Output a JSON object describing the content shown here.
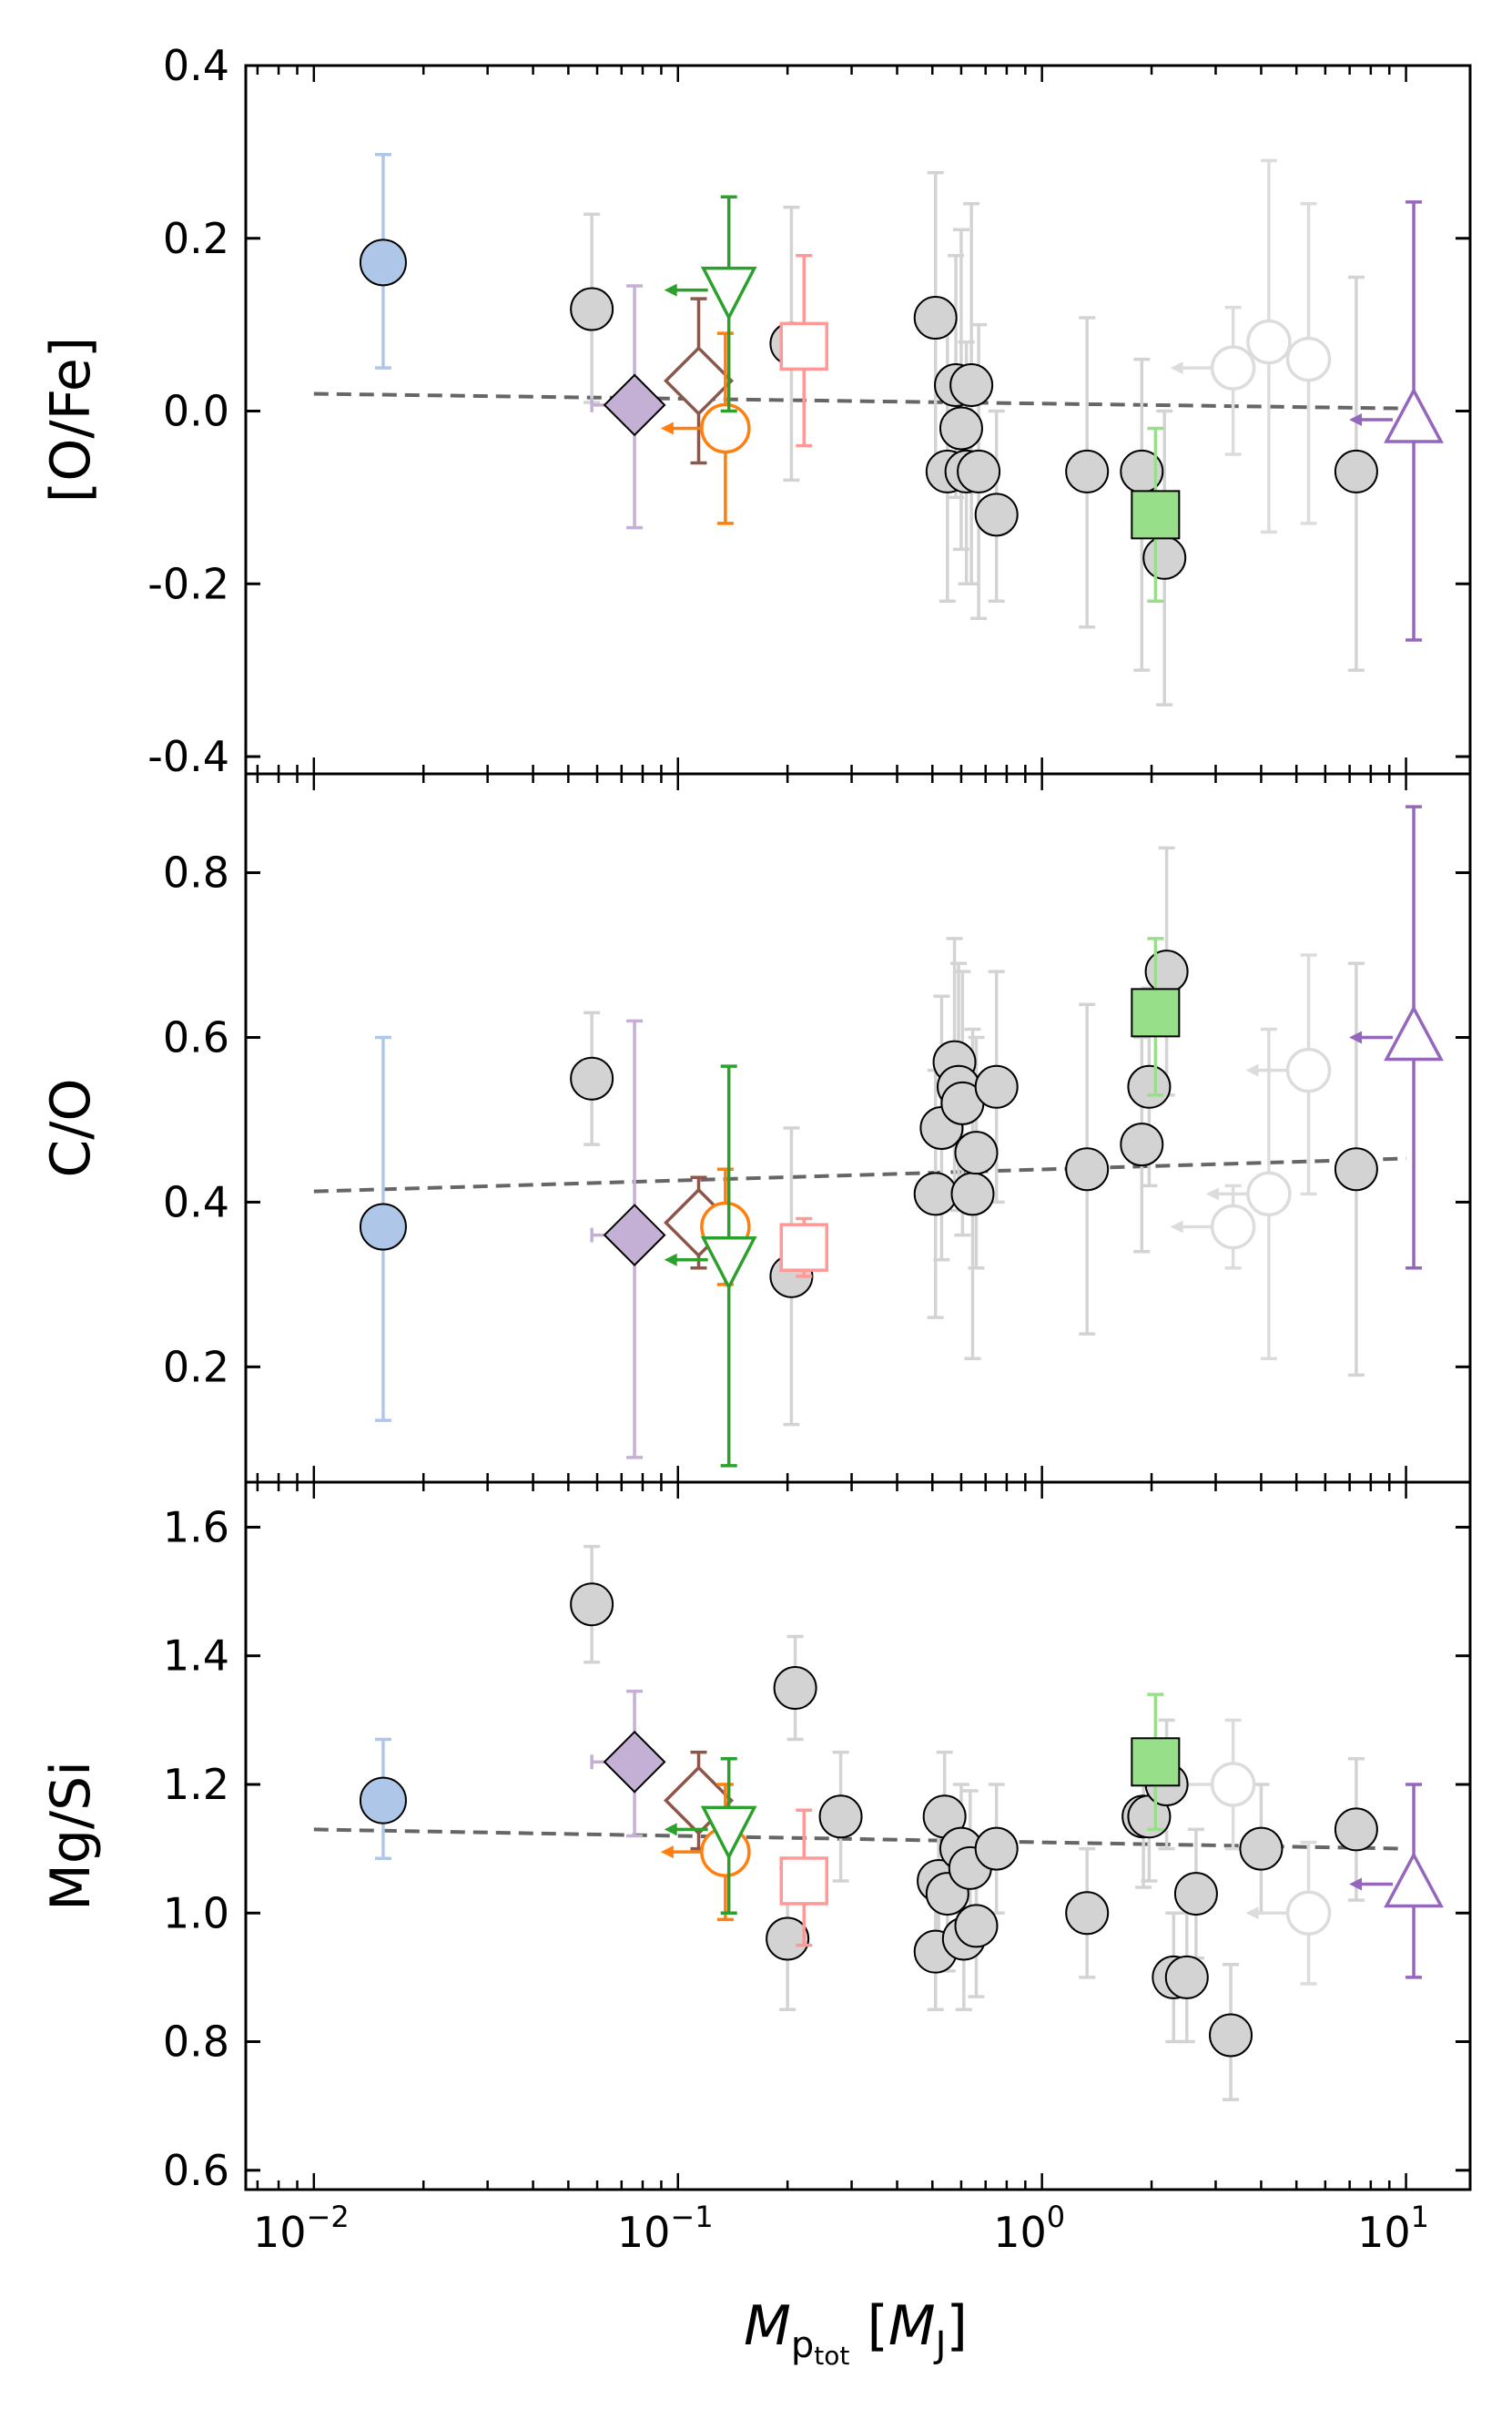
{
  "chart_data": {
    "type": "scatter",
    "x_axis": {
      "label_main": "M",
      "label_sub": "p",
      "label_subsub": "tot",
      "label_unit_open": "[",
      "label_unit_main": "M",
      "label_unit_sub": "J",
      "label_unit_close": "]",
      "scale": "log",
      "range": [
        0.0065,
        15
      ],
      "ticks": [
        0.01,
        0.1,
        1,
        10
      ],
      "tick_labels": [
        {
          "base": "10",
          "exp": "−2"
        },
        {
          "base": "10",
          "exp": "−1"
        },
        {
          "base": "10",
          "exp": "0"
        },
        {
          "base": "10",
          "exp": "1"
        }
      ]
    },
    "panels": [
      {
        "id": "ofe",
        "ylabel": "[O/Fe]",
        "ylim": [
          -0.42,
          0.4
        ],
        "ticks": [
          0.4,
          0.2,
          0.0,
          -0.2,
          -0.4
        ],
        "tick_labels": [
          "0.4",
          "0.2",
          "0.0",
          "-0.2",
          "-0.4"
        ],
        "trend": {
          "x": [
            0.01,
            10
          ],
          "y": [
            0.02,
            0.003
          ]
        },
        "grey_points": [
          {
            "x": 0.058,
            "y": 0.118,
            "lo": 0.01,
            "hi": 0.228
          },
          {
            "x": 0.205,
            "y": 0.078,
            "lo": -0.08,
            "hi": 0.236
          },
          {
            "x": 0.51,
            "y": 0.108,
            "lo": -0.06,
            "hi": 0.276
          },
          {
            "x": 0.55,
            "y": -0.07,
            "lo": -0.22,
            "hi": 0.1
          },
          {
            "x": 0.58,
            "y": 0.03,
            "lo": -0.1,
            "hi": 0.18
          },
          {
            "x": 0.6,
            "y": -0.02,
            "lo": -0.16,
            "hi": 0.21
          },
          {
            "x": 0.62,
            "y": -0.07,
            "lo": -0.2,
            "hi": 0.08
          },
          {
            "x": 0.64,
            "y": 0.03,
            "lo": -0.2,
            "hi": 0.24
          },
          {
            "x": 0.67,
            "y": -0.07,
            "lo": -0.24,
            "hi": 0.1
          },
          {
            "x": 0.75,
            "y": -0.12,
            "lo": -0.22,
            "hi": 0.0
          },
          {
            "x": 1.33,
            "y": -0.07,
            "lo": -0.25,
            "hi": 0.108
          },
          {
            "x": 1.88,
            "y": -0.07,
            "lo": -0.3,
            "hi": 0.06
          },
          {
            "x": 2.17,
            "y": -0.17,
            "lo": -0.34,
            "hi": 0.0
          },
          {
            "x": 7.3,
            "y": -0.07,
            "lo": -0.3,
            "hi": 0.155
          }
        ],
        "open_grey_points": [
          {
            "x": 3.35,
            "y": 0.05,
            "lo": -0.05,
            "hi": 0.12,
            "upper_limit": true
          },
          {
            "x": 4.2,
            "y": 0.08,
            "lo": -0.14,
            "hi": 0.29
          },
          {
            "x": 5.4,
            "y": 0.06,
            "lo": -0.13,
            "hi": 0.24
          }
        ],
        "special_points": [
          {
            "name": "blue-circle",
            "x": 0.0155,
            "y": 0.172,
            "lo": 0.05,
            "hi": 0.297
          },
          {
            "name": "purple-diamond",
            "x": 0.076,
            "y": 0.007,
            "lo": -0.135,
            "hi": 0.145,
            "xlim_arrow": false,
            "xerr": [
              0.058,
              0.085
            ]
          },
          {
            "name": "brown-diamond",
            "x": 0.114,
            "y": 0.035,
            "lo": -0.06,
            "hi": 0.13
          },
          {
            "name": "orange-circle",
            "x": 0.135,
            "y": -0.02,
            "lo": -0.13,
            "hi": 0.09,
            "upper_limit": true
          },
          {
            "name": "green-triangle-down",
            "x": 0.138,
            "y": 0.14,
            "lo": 0.0,
            "hi": 0.248,
            "upper_limit": true
          },
          {
            "name": "pink-square",
            "x": 0.222,
            "y": 0.075,
            "lo": -0.04,
            "hi": 0.18
          },
          {
            "name": "green-square",
            "x": 2.05,
            "y": -0.12,
            "lo": -0.22,
            "hi": -0.02
          },
          {
            "name": "purple-triangle-up",
            "x": 10.5,
            "y": -0.01,
            "lo": -0.265,
            "hi": 0.242,
            "upper_limit": true
          }
        ]
      },
      {
        "id": "co",
        "ylabel": "C/O",
        "ylim": [
          0.06,
          0.92
        ],
        "ticks": [
          0.8,
          0.6,
          0.4,
          0.2
        ],
        "tick_labels": [
          "0.8",
          "0.6",
          "0.4",
          "0.2"
        ],
        "trend": {
          "x": [
            0.01,
            10
          ],
          "y": [
            0.413,
            0.453
          ]
        },
        "grey_points": [
          {
            "x": 0.058,
            "y": 0.55,
            "lo": 0.47,
            "hi": 0.63
          },
          {
            "x": 0.205,
            "y": 0.31,
            "lo": 0.13,
            "hi": 0.49
          },
          {
            "x": 0.51,
            "y": 0.41,
            "lo": 0.26,
            "hi": 0.56
          },
          {
            "x": 0.53,
            "y": 0.49,
            "lo": 0.33,
            "hi": 0.65
          },
          {
            "x": 0.575,
            "y": 0.57,
            "lo": 0.42,
            "hi": 0.72
          },
          {
            "x": 0.59,
            "y": 0.54,
            "lo": 0.39,
            "hi": 0.69
          },
          {
            "x": 0.605,
            "y": 0.52,
            "lo": 0.36,
            "hi": 0.68
          },
          {
            "x": 0.645,
            "y": 0.41,
            "lo": 0.21,
            "hi": 0.61
          },
          {
            "x": 0.66,
            "y": 0.46,
            "lo": 0.32,
            "hi": 0.6
          },
          {
            "x": 0.75,
            "y": 0.54,
            "lo": 0.4,
            "hi": 0.68
          },
          {
            "x": 1.33,
            "y": 0.44,
            "lo": 0.24,
            "hi": 0.64
          },
          {
            "x": 1.88,
            "y": 0.47,
            "lo": 0.34,
            "hi": 0.6
          },
          {
            "x": 1.97,
            "y": 0.54,
            "lo": 0.42,
            "hi": 0.66
          },
          {
            "x": 2.2,
            "y": 0.68,
            "lo": 0.53,
            "hi": 0.83
          },
          {
            "x": 7.3,
            "y": 0.44,
            "lo": 0.19,
            "hi": 0.69
          }
        ],
        "open_grey_points": [
          {
            "x": 3.35,
            "y": 0.37,
            "lo": 0.32,
            "hi": 0.42,
            "upper_limit": true
          },
          {
            "x": 4.2,
            "y": 0.41,
            "lo": 0.21,
            "hi": 0.61,
            "upper_limit": true
          },
          {
            "x": 5.4,
            "y": 0.56,
            "lo": 0.41,
            "hi": 0.7,
            "upper_limit": true
          }
        ],
        "special_points": [
          {
            "name": "blue-circle",
            "x": 0.0155,
            "y": 0.37,
            "lo": 0.135,
            "hi": 0.6
          },
          {
            "name": "purple-diamond",
            "x": 0.076,
            "y": 0.36,
            "lo": 0.09,
            "hi": 0.62,
            "xerr": [
              0.058,
              0.085
            ]
          },
          {
            "name": "brown-diamond",
            "x": 0.114,
            "y": 0.375,
            "lo": 0.32,
            "hi": 0.43
          },
          {
            "name": "orange-circle",
            "x": 0.135,
            "y": 0.37,
            "lo": 0.3,
            "hi": 0.44
          },
          {
            "name": "green-triangle-down",
            "x": 0.138,
            "y": 0.33,
            "lo": 0.08,
            "hi": 0.565,
            "upper_limit": true
          },
          {
            "name": "pink-square",
            "x": 0.222,
            "y": 0.345,
            "lo": 0.31,
            "hi": 0.38
          },
          {
            "name": "green-square",
            "x": 2.05,
            "y": 0.63,
            "lo": 0.53,
            "hi": 0.72
          },
          {
            "name": "purple-triangle-up",
            "x": 10.5,
            "y": 0.6,
            "lo": 0.32,
            "hi": 0.88,
            "upper_limit": true
          }
        ]
      },
      {
        "id": "mgsi",
        "ylabel": "Mg/Si",
        "ylim": [
          0.57,
          1.67
        ],
        "ticks": [
          1.6,
          1.4,
          1.2,
          1.0,
          0.8,
          0.6
        ],
        "tick_labels": [
          "1.6",
          "1.4",
          "1.2",
          "1.0",
          "0.8",
          "0.6"
        ],
        "trend": {
          "x": [
            0.01,
            10
          ],
          "y": [
            1.13,
            1.1
          ]
        },
        "grey_points": [
          {
            "x": 0.058,
            "y": 1.48,
            "lo": 1.39,
            "hi": 1.57
          },
          {
            "x": 0.2,
            "y": 0.96,
            "lo": 0.85,
            "hi": 1.07
          },
          {
            "x": 0.21,
            "y": 1.35,
            "lo": 1.27,
            "hi": 1.43
          },
          {
            "x": 0.28,
            "y": 1.15,
            "lo": 1.05,
            "hi": 1.25
          },
          {
            "x": 0.51,
            "y": 0.94,
            "lo": 0.85,
            "hi": 1.03
          },
          {
            "x": 0.52,
            "y": 1.05,
            "lo": 0.94,
            "hi": 1.16
          },
          {
            "x": 0.54,
            "y": 1.15,
            "lo": 1.05,
            "hi": 1.25
          },
          {
            "x": 0.55,
            "y": 1.03,
            "lo": 0.91,
            "hi": 1.15
          },
          {
            "x": 0.6,
            "y": 1.1,
            "lo": 1.0,
            "hi": 1.2
          },
          {
            "x": 0.61,
            "y": 0.96,
            "lo": 0.85,
            "hi": 1.07
          },
          {
            "x": 0.635,
            "y": 1.07,
            "lo": 0.95,
            "hi": 1.19
          },
          {
            "x": 0.66,
            "y": 0.98,
            "lo": 0.87,
            "hi": 1.09
          },
          {
            "x": 0.75,
            "y": 1.1,
            "lo": 1.0,
            "hi": 1.2
          },
          {
            "x": 1.33,
            "y": 1.0,
            "lo": 0.9,
            "hi": 1.1
          },
          {
            "x": 1.9,
            "y": 1.15,
            "lo": 1.04,
            "hi": 1.26
          },
          {
            "x": 1.97,
            "y": 1.15,
            "lo": 1.05,
            "hi": 1.25
          },
          {
            "x": 2.2,
            "y": 1.2,
            "lo": 1.1,
            "hi": 1.3
          },
          {
            "x": 2.3,
            "y": 0.9,
            "lo": 0.8,
            "hi": 1.0
          },
          {
            "x": 2.5,
            "y": 0.9,
            "lo": 0.8,
            "hi": 1.0
          },
          {
            "x": 2.65,
            "y": 1.03,
            "lo": 0.93,
            "hi": 1.13
          },
          {
            "x": 3.3,
            "y": 0.81,
            "lo": 0.71,
            "hi": 0.92
          },
          {
            "x": 4.0,
            "y": 1.1,
            "lo": 1.0,
            "hi": 1.2
          },
          {
            "x": 7.3,
            "y": 1.13,
            "lo": 1.02,
            "hi": 1.24
          }
        ],
        "open_grey_points": [
          {
            "x": 3.35,
            "y": 1.2,
            "lo": 1.1,
            "hi": 1.3,
            "upper_limit": true
          },
          {
            "x": 5.4,
            "y": 1.0,
            "lo": 0.89,
            "hi": 1.11,
            "upper_limit": true
          }
        ],
        "special_points": [
          {
            "name": "blue-circle",
            "x": 0.0155,
            "y": 1.175,
            "lo": 1.085,
            "hi": 1.27
          },
          {
            "name": "purple-diamond",
            "x": 0.076,
            "y": 1.235,
            "lo": 1.12,
            "hi": 1.345,
            "xerr": [
              0.058,
              0.085
            ]
          },
          {
            "name": "brown-diamond",
            "x": 0.114,
            "y": 1.175,
            "lo": 1.1,
            "hi": 1.25
          },
          {
            "name": "orange-circle",
            "x": 0.135,
            "y": 1.095,
            "lo": 0.99,
            "hi": 1.2,
            "upper_limit": true
          },
          {
            "name": "green-triangle-down",
            "x": 0.138,
            "y": 1.13,
            "lo": 1.0,
            "hi": 1.24,
            "upper_limit": true
          },
          {
            "name": "pink-square",
            "x": 0.222,
            "y": 1.05,
            "lo": 0.95,
            "hi": 1.16
          },
          {
            "name": "green-square",
            "x": 2.05,
            "y": 1.235,
            "lo": 1.13,
            "hi": 1.34
          },
          {
            "name": "purple-triangle-up",
            "x": 10.5,
            "y": 1.045,
            "lo": 0.9,
            "hi": 1.2,
            "upper_limit": true
          }
        ]
      }
    ]
  },
  "styles": {
    "grey_fill": "#d3d3d3",
    "grey_err": "#d3d3d3",
    "blue_fill": "#aec7e8",
    "blue_err": "#aec7e8",
    "purple_fill": "#c5b0d5",
    "purple_err": "#c5b0d5",
    "purple_dark": "#9467bd",
    "brown": "#8c564b",
    "orange": "#ff7f0e",
    "green_dark": "#2ca02c",
    "green_light": "#98df8a",
    "pink": "#ff9896",
    "trend": "#666666"
  }
}
